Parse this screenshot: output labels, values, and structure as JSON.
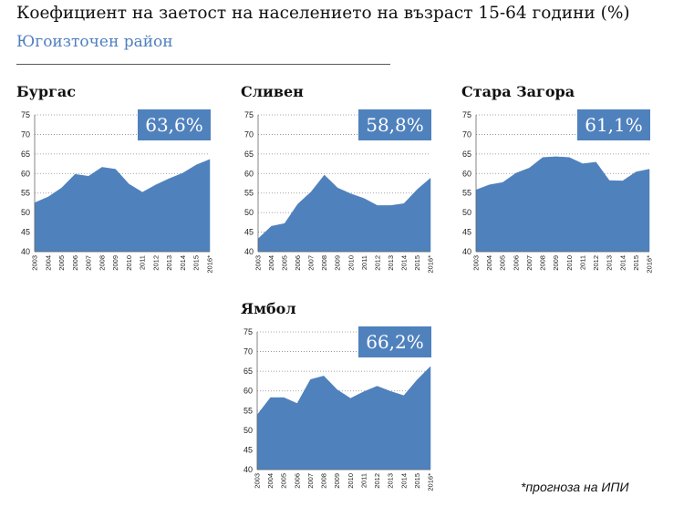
{
  "header": {
    "title": "Коефициент на заетост на населението на възраст 15-64 години (%)",
    "subtitle": "Югоизточен район"
  },
  "footnote": "*прогноза на ИПИ",
  "colors": {
    "area": "#4f81bd",
    "callout_bg": "#4f81bd",
    "callout_text": "#ffffff",
    "subtitle": "#4f7fbf"
  },
  "chart_data": [
    {
      "type": "area",
      "title": "Бургас",
      "callout": "63,6%",
      "x": [
        "2003",
        "2004",
        "2005",
        "2006",
        "2007",
        "2008",
        "2009",
        "2010",
        "2011",
        "2012",
        "2013",
        "2014",
        "2015",
        "2016*"
      ],
      "values": [
        52.5,
        54,
        56.3,
        59.8,
        59.3,
        61.6,
        61.1,
        57.3,
        55.2,
        57.1,
        58.7,
        60.1,
        62.2,
        63.6
      ],
      "ylim": [
        40,
        75
      ],
      "yticks": [
        40,
        45,
        50,
        55,
        60,
        65,
        70,
        75
      ],
      "grid": "dotted-horizontal"
    },
    {
      "type": "area",
      "title": "Сливен",
      "callout": "58,8%",
      "x": [
        "2003",
        "2004",
        "2005",
        "2006",
        "2007",
        "2008",
        "2009",
        "2010",
        "2011",
        "2012",
        "2013",
        "2014",
        "2015",
        "2016*"
      ],
      "values": [
        43.3,
        46.5,
        47.2,
        52.2,
        55.3,
        59.6,
        56.3,
        54.8,
        53.6,
        51.8,
        51.8,
        52.3,
        55.9,
        58.8
      ],
      "ylim": [
        40,
        75
      ],
      "yticks": [
        40,
        45,
        50,
        55,
        60,
        65,
        70,
        75
      ],
      "grid": "dotted-horizontal"
    },
    {
      "type": "area",
      "title": "Стара Загора",
      "callout": "61,1%",
      "x": [
        "2003",
        "2004",
        "2005",
        "2006",
        "2007",
        "2008",
        "2009",
        "2010",
        "2011",
        "2012",
        "2013",
        "2014",
        "2015",
        "2016*"
      ],
      "values": [
        55.8,
        57.1,
        57.7,
        60.1,
        61.4,
        64.1,
        64.3,
        64.1,
        62.5,
        62.9,
        58.2,
        58.1,
        60.4,
        61.1
      ],
      "ylim": [
        40,
        75
      ],
      "yticks": [
        40,
        45,
        50,
        55,
        60,
        65,
        70,
        75
      ],
      "grid": "dotted-horizontal"
    },
    {
      "type": "area",
      "title": "Ямбол",
      "callout": "66,2%",
      "x": [
        "2003",
        "2004",
        "2005",
        "2006",
        "2007",
        "2008",
        "2009",
        "2010",
        "2011",
        "2012",
        "2013",
        "2014",
        "2015",
        "2016*"
      ],
      "values": [
        53.9,
        58.3,
        58.3,
        56.8,
        62.9,
        63.8,
        60.3,
        58.1,
        59.8,
        61.2,
        59.9,
        58.8,
        62.8,
        66.2
      ],
      "ylim": [
        40,
        75
      ],
      "yticks": [
        40,
        45,
        50,
        55,
        60,
        65,
        70,
        75
      ],
      "grid": "dotted-horizontal"
    }
  ]
}
